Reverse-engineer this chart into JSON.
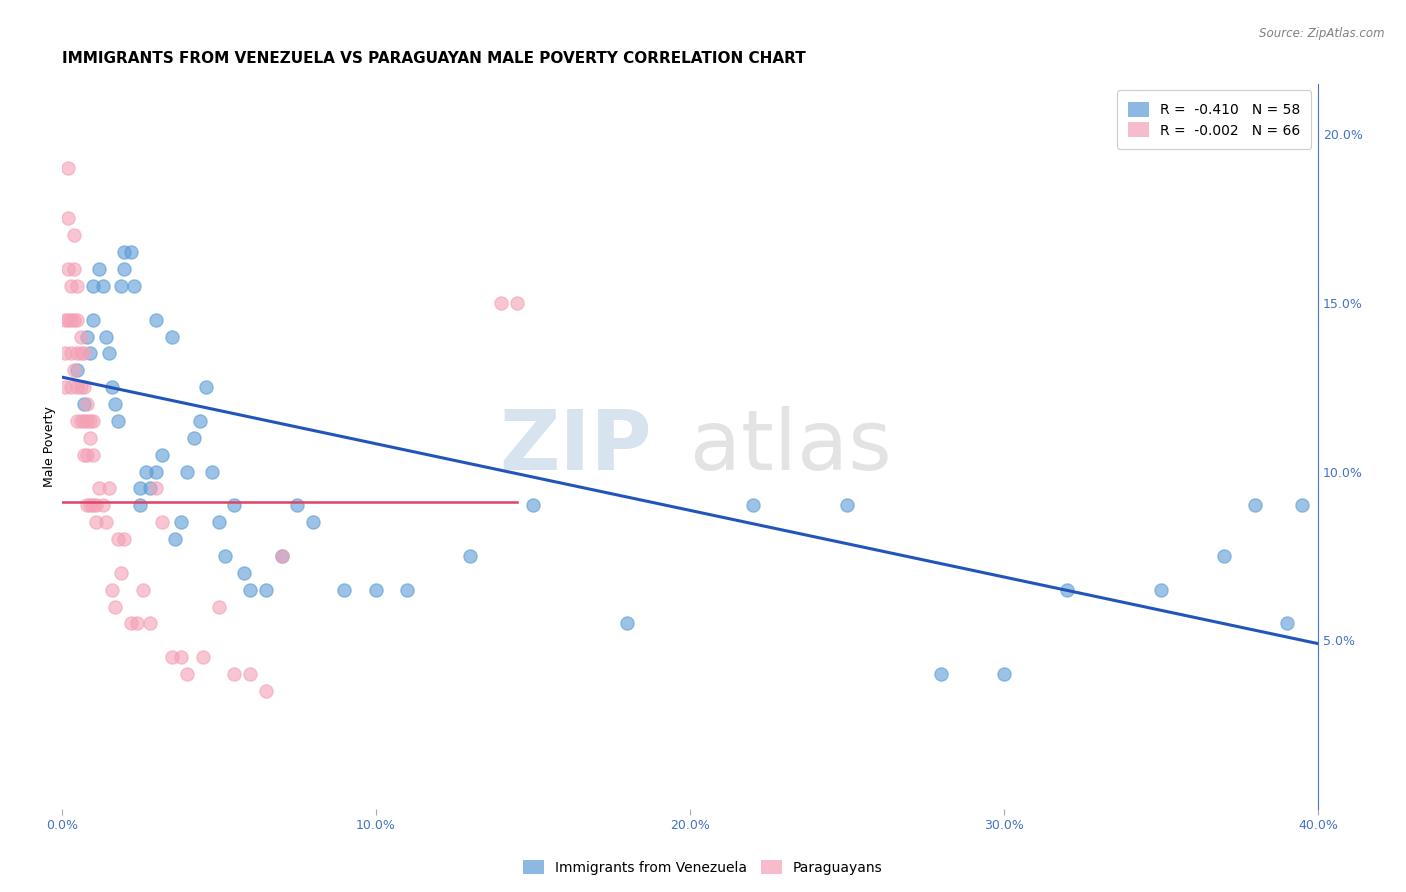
{
  "title": "IMMIGRANTS FROM VENEZUELA VS PARAGUAYAN MALE POVERTY CORRELATION CHART",
  "source": "Source: ZipAtlas.com",
  "ylabel": "Male Poverty",
  "legend_labels": [
    "Immigrants from Venezuela",
    "Paraguayans"
  ],
  "legend_entries": [
    {
      "label": "R =  -0.410   N = 58",
      "color": "#6baed6"
    },
    {
      "label": "R =  -0.002   N = 66",
      "color": "#f4a0b5"
    }
  ],
  "blue_color": "#5b9bd5",
  "pink_color": "#f4a0b5",
  "trendline_blue": "#2255bb",
  "trendline_pink": "#dd4466",
  "watermark_zip": "ZIP",
  "watermark_atlas": "atlas",
  "xlim": [
    0.0,
    0.4
  ],
  "ylim": [
    0.0,
    0.215
  ],
  "xticks": [
    0.0,
    0.1,
    0.2,
    0.3,
    0.4
  ],
  "yticks_right": [
    0.05,
    0.1,
    0.15,
    0.2
  ],
  "blue_scatter_x": [
    0.005,
    0.007,
    0.008,
    0.009,
    0.01,
    0.01,
    0.012,
    0.013,
    0.014,
    0.015,
    0.016,
    0.017,
    0.018,
    0.019,
    0.02,
    0.02,
    0.022,
    0.023,
    0.025,
    0.025,
    0.027,
    0.028,
    0.03,
    0.03,
    0.032,
    0.035,
    0.036,
    0.038,
    0.04,
    0.042,
    0.044,
    0.046,
    0.048,
    0.05,
    0.052,
    0.055,
    0.058,
    0.06,
    0.065,
    0.07,
    0.075,
    0.08,
    0.09,
    0.1,
    0.11,
    0.13,
    0.15,
    0.18,
    0.22,
    0.25,
    0.28,
    0.3,
    0.32,
    0.35,
    0.37,
    0.39,
    0.38,
    0.395
  ],
  "blue_scatter_y": [
    0.13,
    0.12,
    0.14,
    0.135,
    0.155,
    0.145,
    0.16,
    0.155,
    0.14,
    0.135,
    0.125,
    0.12,
    0.115,
    0.155,
    0.165,
    0.16,
    0.165,
    0.155,
    0.095,
    0.09,
    0.1,
    0.095,
    0.1,
    0.145,
    0.105,
    0.14,
    0.08,
    0.085,
    0.1,
    0.11,
    0.115,
    0.125,
    0.1,
    0.085,
    0.075,
    0.09,
    0.07,
    0.065,
    0.065,
    0.075,
    0.09,
    0.085,
    0.065,
    0.065,
    0.065,
    0.075,
    0.09,
    0.055,
    0.09,
    0.09,
    0.04,
    0.04,
    0.065,
    0.065,
    0.075,
    0.055,
    0.09,
    0.09
  ],
  "pink_scatter_x": [
    0.001,
    0.001,
    0.001,
    0.002,
    0.002,
    0.002,
    0.002,
    0.003,
    0.003,
    0.003,
    0.003,
    0.004,
    0.004,
    0.004,
    0.004,
    0.005,
    0.005,
    0.005,
    0.005,
    0.005,
    0.006,
    0.006,
    0.006,
    0.006,
    0.007,
    0.007,
    0.007,
    0.007,
    0.008,
    0.008,
    0.008,
    0.008,
    0.009,
    0.009,
    0.009,
    0.01,
    0.01,
    0.01,
    0.011,
    0.011,
    0.012,
    0.013,
    0.014,
    0.015,
    0.016,
    0.017,
    0.018,
    0.019,
    0.02,
    0.022,
    0.024,
    0.026,
    0.028,
    0.03,
    0.032,
    0.035,
    0.038,
    0.04,
    0.045,
    0.05,
    0.055,
    0.06,
    0.065,
    0.07,
    0.14,
    0.145
  ],
  "pink_scatter_y": [
    0.145,
    0.135,
    0.125,
    0.19,
    0.175,
    0.16,
    0.145,
    0.155,
    0.145,
    0.135,
    0.125,
    0.17,
    0.16,
    0.145,
    0.13,
    0.155,
    0.145,
    0.135,
    0.125,
    0.115,
    0.14,
    0.135,
    0.125,
    0.115,
    0.135,
    0.125,
    0.115,
    0.105,
    0.12,
    0.115,
    0.105,
    0.09,
    0.115,
    0.11,
    0.09,
    0.115,
    0.105,
    0.09,
    0.09,
    0.085,
    0.095,
    0.09,
    0.085,
    0.095,
    0.065,
    0.06,
    0.08,
    0.07,
    0.08,
    0.055,
    0.055,
    0.065,
    0.055,
    0.095,
    0.085,
    0.045,
    0.045,
    0.04,
    0.045,
    0.06,
    0.04,
    0.04,
    0.035,
    0.075,
    0.15,
    0.15
  ],
  "blue_trendline_x": [
    0.0,
    0.4
  ],
  "blue_trendline_y": [
    0.128,
    0.049
  ],
  "pink_trendline_x": [
    0.0,
    0.145
  ],
  "pink_trendline_y": [
    0.091,
    0.091
  ],
  "background_color": "#ffffff",
  "grid_color": "#d8d8d8",
  "right_axis_color": "#4472c4",
  "title_fontsize": 11,
  "axis_label_fontsize": 9,
  "tick_fontsize": 9
}
